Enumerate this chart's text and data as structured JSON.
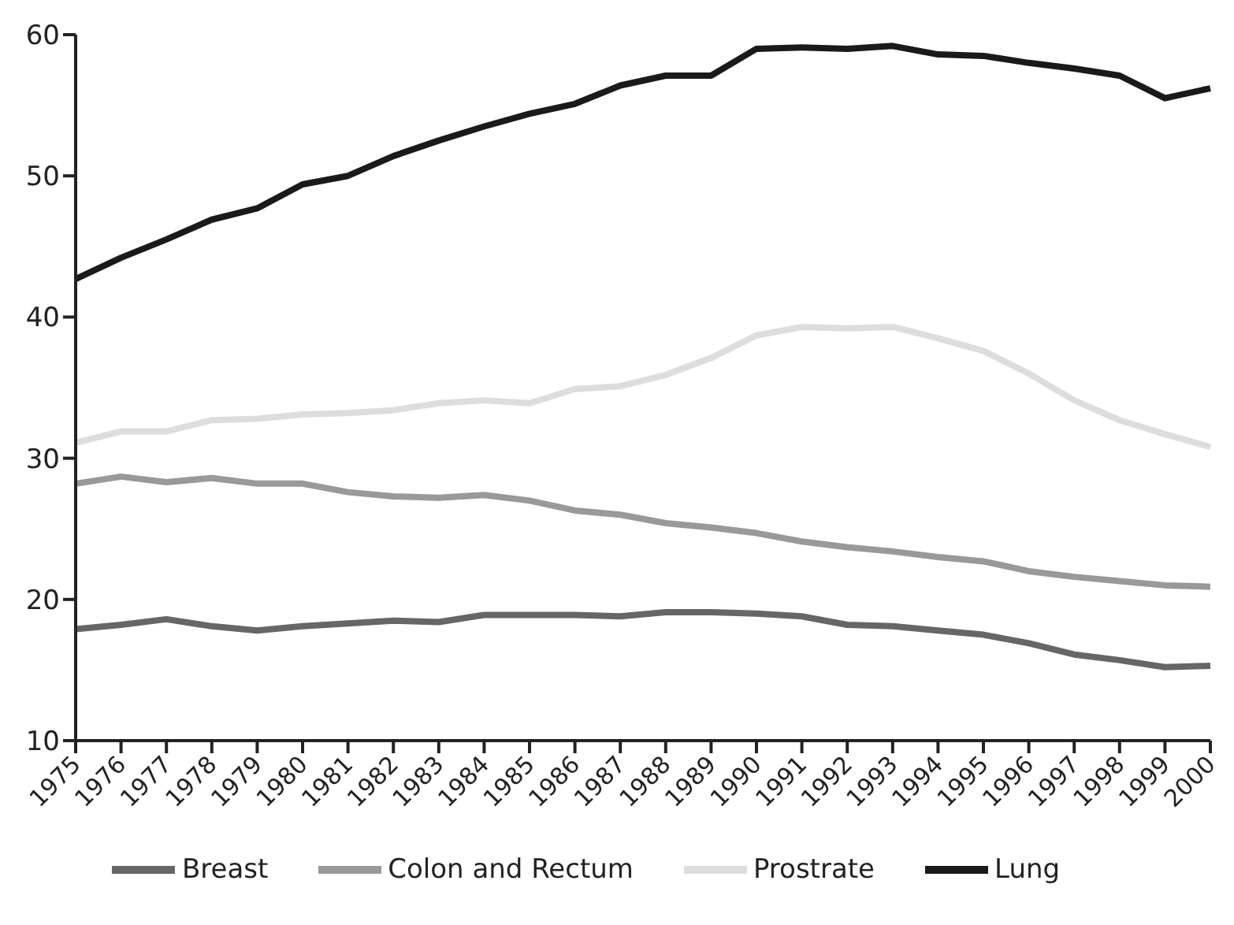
{
  "chart_data": {
    "type": "line",
    "categories": [
      "1975",
      "1976",
      "1977",
      "1978",
      "1979",
      "1980",
      "1981",
      "1982",
      "1983",
      "1984",
      "1985",
      "1986",
      "1987",
      "1988",
      "1989",
      "1990",
      "1991",
      "1992",
      "1993",
      "1994",
      "1995",
      "1996",
      "1997",
      "1998",
      "1999",
      "2000"
    ],
    "series": [
      {
        "name": "Breast",
        "color": "#666666",
        "values": [
          17.9,
          18.2,
          18.6,
          18.1,
          17.8,
          18.1,
          18.3,
          18.5,
          18.4,
          18.9,
          18.9,
          18.9,
          18.8,
          19.1,
          19.1,
          19.0,
          18.8,
          18.2,
          18.1,
          17.8,
          17.5,
          16.9,
          16.1,
          15.7,
          15.2,
          15.3
        ]
      },
      {
        "name": "Colon and Rectum",
        "color": "#999999",
        "values": [
          28.2,
          28.7,
          28.3,
          28.6,
          28.2,
          28.2,
          27.6,
          27.3,
          27.2,
          27.4,
          27.0,
          26.3,
          26.0,
          25.4,
          25.1,
          24.7,
          24.1,
          23.7,
          23.4,
          23.0,
          22.7,
          22.0,
          21.6,
          21.3,
          21.0,
          20.9
        ]
      },
      {
        "name": "Prostrate",
        "color": "#dddddd",
        "values": [
          31.1,
          31.9,
          31.9,
          32.7,
          32.8,
          33.1,
          33.2,
          33.4,
          33.9,
          34.1,
          33.9,
          34.9,
          35.1,
          35.9,
          37.1,
          38.7,
          39.3,
          39.2,
          39.3,
          38.5,
          37.6,
          36.0,
          34.1,
          32.7,
          31.7,
          30.8
        ]
      },
      {
        "name": "Lung",
        "color": "#1a1a1a",
        "values": [
          42.7,
          44.2,
          45.5,
          46.9,
          47.7,
          49.4,
          50.0,
          51.4,
          52.5,
          53.5,
          54.4,
          55.1,
          56.4,
          57.1,
          57.1,
          59.0,
          59.1,
          59.0,
          59.2,
          58.6,
          58.5,
          58.0,
          57.6,
          57.1,
          55.5,
          56.2
        ]
      }
    ],
    "ylim": [
      10,
      60
    ],
    "yticks": [
      10,
      20,
      30,
      40,
      50,
      60
    ],
    "grid": false,
    "legend": "bottom",
    "marker": "none",
    "line_style": "solid"
  }
}
